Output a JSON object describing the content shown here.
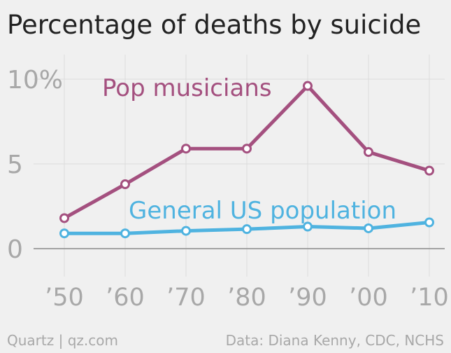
{
  "header": {
    "title": "Percentage of deaths by suicide"
  },
  "footer": {
    "brand": "Quartz | qz.com",
    "source": "Data: Diana Kenny, CDC, NCHS"
  },
  "chart_data": {
    "type": "line",
    "title": "Percentage of deaths by suicide",
    "xlabel": "",
    "ylabel": "",
    "categories": [
      "’50",
      "’60",
      "’70",
      "’80",
      "’90",
      "’00",
      "’10"
    ],
    "x": [
      1950,
      1960,
      1970,
      1980,
      1990,
      2000,
      2010
    ],
    "y_ticks": [
      0,
      5,
      10
    ],
    "y_tick_labels": [
      "0",
      "5",
      "10%"
    ],
    "ylim": [
      0,
      11
    ],
    "grid": true,
    "series": [
      {
        "name": "Pop musicians",
        "color": "#a4507f",
        "values": [
          1.8,
          3.8,
          5.9,
          5.9,
          9.6,
          5.7,
          4.6
        ]
      },
      {
        "name": "General US population",
        "color": "#4fb3e0",
        "values": [
          0.9,
          0.9,
          1.05,
          1.15,
          1.3,
          1.2,
          1.55
        ]
      }
    ]
  },
  "colors": {
    "background": "#f0f0f0",
    "grid": "#dcdcdc",
    "axis": "#888888",
    "tick_text": "#a8a8a8",
    "title_text": "#222222"
  }
}
